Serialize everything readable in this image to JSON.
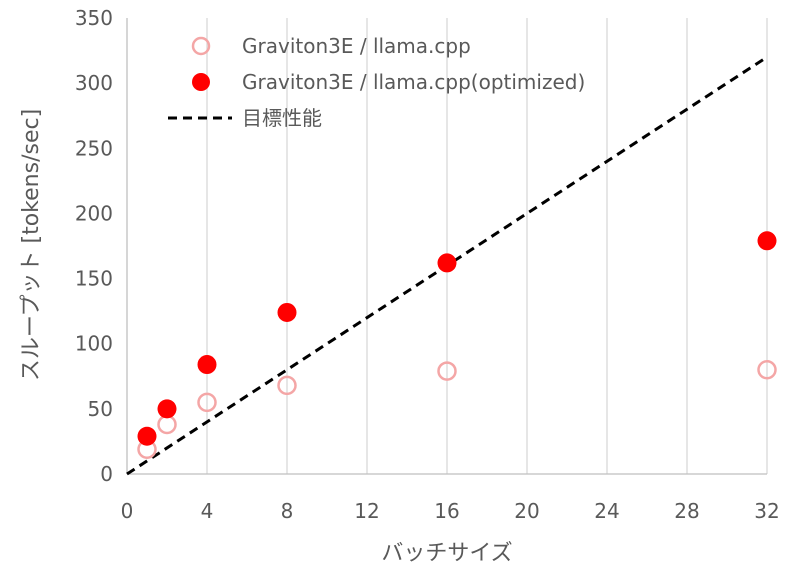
{
  "chart_data": {
    "type": "scatter",
    "title": "",
    "xlabel": "バッチサイズ",
    "ylabel": "スループット [tokens/sec]",
    "xlim": [
      0,
      32
    ],
    "ylim": [
      0,
      350
    ],
    "x_ticks": [
      0,
      4,
      8,
      12,
      16,
      20,
      24,
      28,
      32
    ],
    "y_ticks": [
      0,
      50,
      100,
      150,
      200,
      250,
      300,
      350
    ],
    "x_tick_labels": [
      "0",
      "4",
      "8",
      "12",
      "16",
      "20",
      "24",
      "28",
      "32"
    ],
    "y_tick_labels": [
      "0",
      "50",
      "100",
      "150",
      "200",
      "250",
      "300",
      "350"
    ],
    "grid": "vertical",
    "legend_position": "top-left",
    "series": [
      {
        "name": "Graviton3E /  llama.cpp",
        "marker": "hollow-circle",
        "color": "#f4a6a6",
        "x": [
          1,
          2,
          4,
          8,
          16,
          32
        ],
        "y": [
          19,
          38,
          55,
          68,
          79,
          80
        ]
      },
      {
        "name": "Graviton3E /  llama.cpp(optimized)",
        "marker": "filled-circle",
        "color": "#ff0000",
        "x": [
          1,
          2,
          4,
          8,
          16,
          32
        ],
        "y": [
          29,
          50,
          84,
          124,
          162,
          179
        ]
      },
      {
        "name": "目標性能",
        "marker": "dashed-line",
        "color": "#000000",
        "x": [
          0,
          32
        ],
        "y": [
          0,
          320
        ]
      }
    ]
  }
}
